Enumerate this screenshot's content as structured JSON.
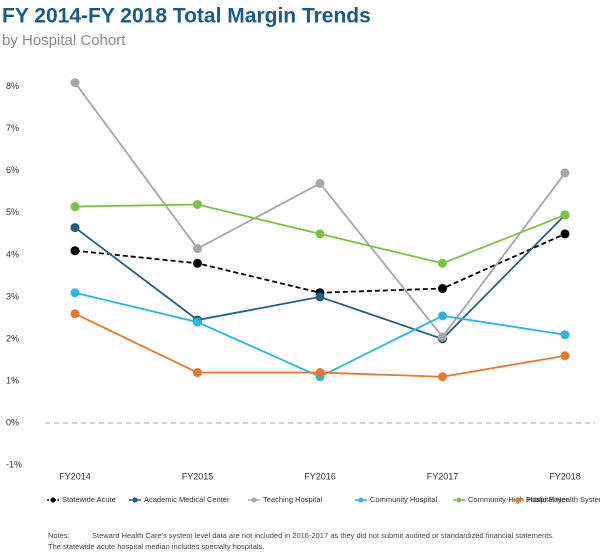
{
  "chart_data": {
    "type": "line",
    "title": "FY 2014-FY 2018 Total Margin Trends",
    "subtitle": "by Hospital Cohort",
    "categories": [
      "FY2014",
      "FY2015",
      "FY2016",
      "FY2017",
      "FY2018"
    ],
    "ylim": [
      -1,
      8.4
    ],
    "yticks": [
      {
        "value": -1,
        "label": "-1%"
      },
      {
        "value": 0,
        "label": "0%"
      },
      {
        "value": 1,
        "label": "1%"
      },
      {
        "value": 2,
        "label": "2%"
      },
      {
        "value": 3,
        "label": "3%"
      },
      {
        "value": 4,
        "label": "4%"
      },
      {
        "value": 5,
        "label": "5%"
      },
      {
        "value": 6,
        "label": "6%"
      },
      {
        "value": 7,
        "label": "7%"
      },
      {
        "value": 8,
        "label": "8%"
      }
    ],
    "zero_line": true,
    "legend": "bottom",
    "series": [
      {
        "name": "Statewide Acute",
        "color": "#000000",
        "dashed": true,
        "values": [
          4.1,
          3.8,
          3.1,
          3.2,
          4.5
        ]
      },
      {
        "name": "Academic Medical Center",
        "color": "#1f5f80",
        "values": [
          4.65,
          2.45,
          3.0,
          2.0,
          4.95
        ]
      },
      {
        "name": "Teaching Hospital",
        "color": "#a6a6a6",
        "values": [
          8.1,
          4.15,
          5.7,
          2.05,
          5.95
        ]
      },
      {
        "name": "Community Hospital",
        "color": "#29b6e3",
        "values": [
          3.1,
          2.4,
          1.1,
          2.55,
          2.1
        ]
      },
      {
        "name": "Community-High Public Payer",
        "color": "#7dc142",
        "values": [
          5.15,
          5.2,
          4.5,
          3.8,
          4.95
        ]
      },
      {
        "name": "Hospital Health System",
        "color": "#e8772e",
        "values": [
          2.6,
          1.2,
          1.2,
          1.1,
          1.6
        ]
      }
    ],
    "notes": {
      "label": "Notes:",
      "lines": [
        "Steward Health Care's system level data are not included in 2016-2017 as they did not submit audited or standardized financial statements.",
        "The statewide acute hospital median includes specialty hospitals."
      ]
    }
  }
}
